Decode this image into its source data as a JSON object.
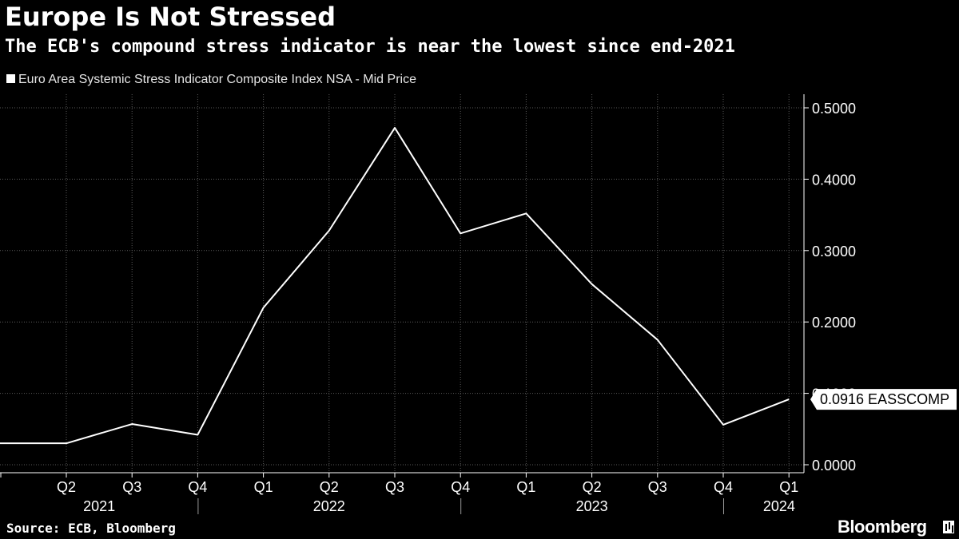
{
  "header": {
    "title": "Europe Is Not Stressed",
    "subtitle": "The ECB's compound stress indicator is near the lowest since end-2021"
  },
  "legend": {
    "label": "Euro Area Systemic Stress Indicator Composite Index NSA - Mid Price"
  },
  "footer": {
    "source": "Source: ECB, Bloomberg",
    "brand": "Bloomberg"
  },
  "colors": {
    "background": "#000000",
    "line": "#ffffff",
    "grid": "#5a5a5a",
    "text": "#ffffff"
  },
  "chart_data": {
    "type": "line",
    "title": "Europe Is Not Stressed",
    "xlabel": "",
    "ylabel": "",
    "ylim": [
      0,
      0.5
    ],
    "y_ticks": [
      "0.0000",
      "0.1000",
      "0.2000",
      "0.3000",
      "0.4000",
      "0.5000"
    ],
    "y_tick_values": [
      0,
      0.1,
      0.2,
      0.3,
      0.4,
      0.5
    ],
    "quarter_labels": [
      "Q2",
      "Q3",
      "Q4",
      "Q1",
      "Q2",
      "Q3",
      "Q4",
      "Q1",
      "Q2",
      "Q3",
      "Q4",
      "Q1"
    ],
    "year_labels": [
      {
        "label": "2021",
        "start": 0,
        "end": 3
      },
      {
        "label": "2022",
        "start": 3,
        "end": 7
      },
      {
        "label": "2023",
        "start": 7,
        "end": 11
      },
      {
        "label": "2024",
        "start": 11,
        "end": 12
      }
    ],
    "series": [
      {
        "name": "Euro Area Systemic Stress Indicator Composite Index NSA - Mid Price",
        "ticker": "EASSCOMP",
        "x_index": [
          -1,
          0,
          1,
          2,
          3,
          4,
          5,
          6,
          7,
          8,
          9,
          10,
          11
        ],
        "values": [
          0.03,
          0.03,
          0.057,
          0.042,
          0.22,
          0.328,
          0.472,
          0.324,
          0.352,
          0.253,
          0.175,
          0.056,
          0.0916
        ]
      }
    ],
    "last_value_label": "0.0916 EASSCOMP",
    "grid": true,
    "y_axis_side": "right"
  }
}
